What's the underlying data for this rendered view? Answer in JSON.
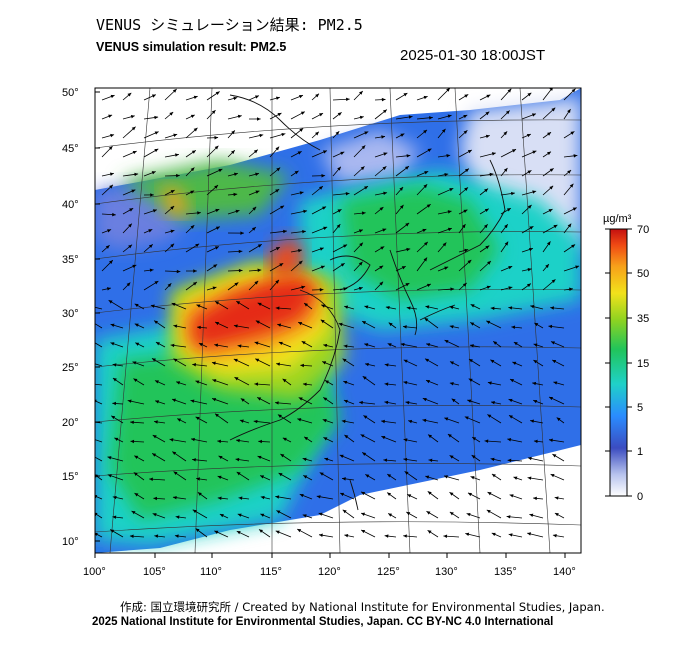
{
  "header": {
    "title_jp": "VENUS シミュレーション結果: PM2.5",
    "title_en": "VENUS simulation result: PM2.5",
    "timestamp": "2025-01-30 18:00JST"
  },
  "map": {
    "lat_ticks": [
      "50°",
      "45°",
      "40°",
      "35°",
      "30°",
      "25°",
      "20°",
      "15°",
      "10°"
    ],
    "lon_ticks": [
      "100°",
      "105°",
      "110°",
      "115°",
      "120°",
      "125°",
      "130°",
      "135°",
      "140°"
    ],
    "lat_range": [
      9,
      51
    ],
    "lon_range": [
      100,
      141
    ]
  },
  "colorbar": {
    "unit": "µg/m³",
    "ticks": [
      "70",
      "50",
      "35",
      "15",
      "5",
      "1",
      "0"
    ],
    "colors": [
      "#ffffff",
      "#3b4cc0",
      "#2a8cff",
      "#1fd1c8",
      "#21c45a",
      "#8fd321",
      "#f2e21b",
      "#f7a11a",
      "#f04a14",
      "#c41010"
    ]
  },
  "footer": {
    "credit": "作成: 国立環境研究所 / Created by National Institute for Environmental Studies, Japan.",
    "copyright": "2025 National Institute for Environmental Studies, Japan. CC BY-NC 4.0 International"
  }
}
